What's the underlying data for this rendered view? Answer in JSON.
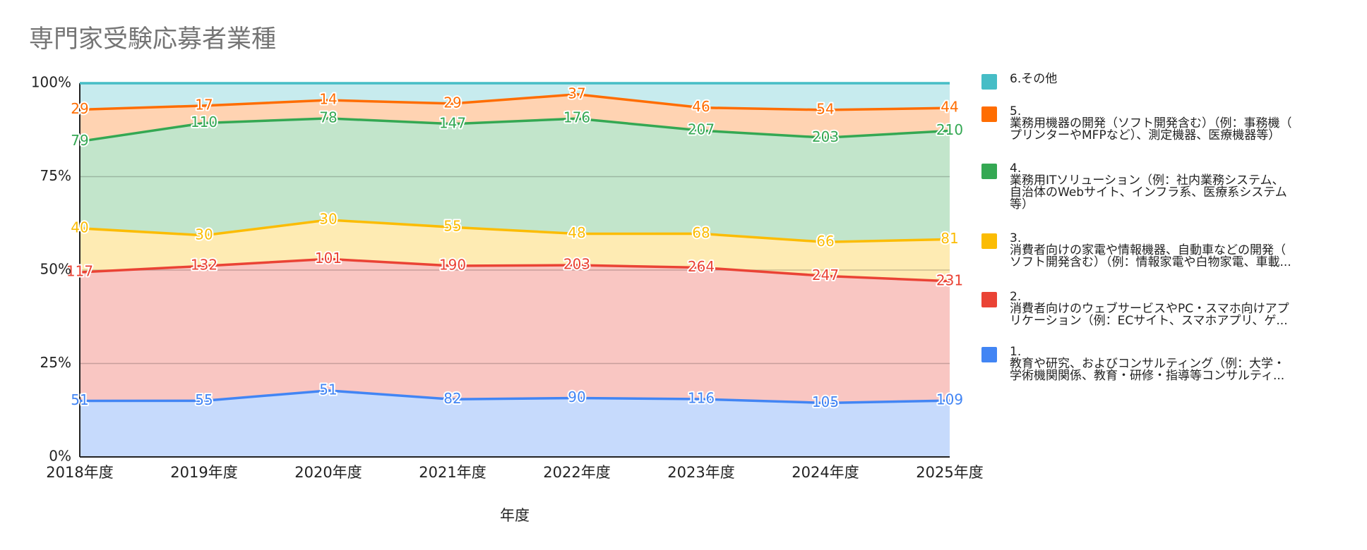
{
  "chart_data": {
    "type": "area",
    "stacking": "percent",
    "title": "専門家受験応募者業種",
    "x_label": "年度",
    "categories": [
      "2018年度",
      "2019年度",
      "2020年度",
      "2021年度",
      "2022年度",
      "2023年度",
      "2024年度",
      "2025年度"
    ],
    "ylim": [
      0,
      100
    ],
    "yticks": [
      {
        "value": 0,
        "label": "0%"
      },
      {
        "value": 25,
        "label": "25%"
      },
      {
        "value": 50,
        "label": "50%"
      },
      {
        "value": 75,
        "label": "75%"
      },
      {
        "value": 100,
        "label": "100%"
      }
    ],
    "grid": true,
    "legend": "right",
    "data_labels": true,
    "series": [
      {
        "name": "1.\n教育や研究、およびコンサルティング（例：大学・\n学術機関関係、教育・研修・指導等コンサルティ...",
        "color": "#4285f4",
        "values": [
          51,
          55,
          51,
          82,
          90,
          116,
          105,
          109
        ]
      },
      {
        "name": "2.\n消費者向けのウェブサービスやPC・スマホ向けアプ\nリケーション（例：ECサイト、スマホアプリ、ゲ...",
        "color": "#ea4335",
        "values": [
          117,
          132,
          101,
          190,
          203,
          264,
          247,
          231
        ]
      },
      {
        "name": "3.\n消費者向けの家電や情報機器、自動車などの開発（\nソフト開発含む）（例：情報家電や白物家電、車載...",
        "color": "#fbbc04",
        "values": [
          40,
          30,
          30,
          55,
          48,
          68,
          66,
          81
        ]
      },
      {
        "name": "4.\n業務用ITソリューション（例：社内業務システム、\n自治体のWebサイト、インフラ系、医療系システム\n等）",
        "color": "#34a853",
        "values": [
          79,
          110,
          78,
          147,
          176,
          207,
          203,
          210
        ]
      },
      {
        "name": "5.\n業務用機器の開発（ソフト開発含む）（例：事務機（\nプリンターやMFPなど）、測定機器、医療機器等）",
        "color": "#ff6d01",
        "values": [
          29,
          17,
          14,
          29,
          37,
          46,
          54,
          44
        ]
      },
      {
        "name": "6.その他",
        "color": "#46bdc6",
        "values": [
          24,
          22,
          13,
          29,
          17,
          49,
          52,
          48
        ],
        "data_labels": false
      }
    ]
  }
}
